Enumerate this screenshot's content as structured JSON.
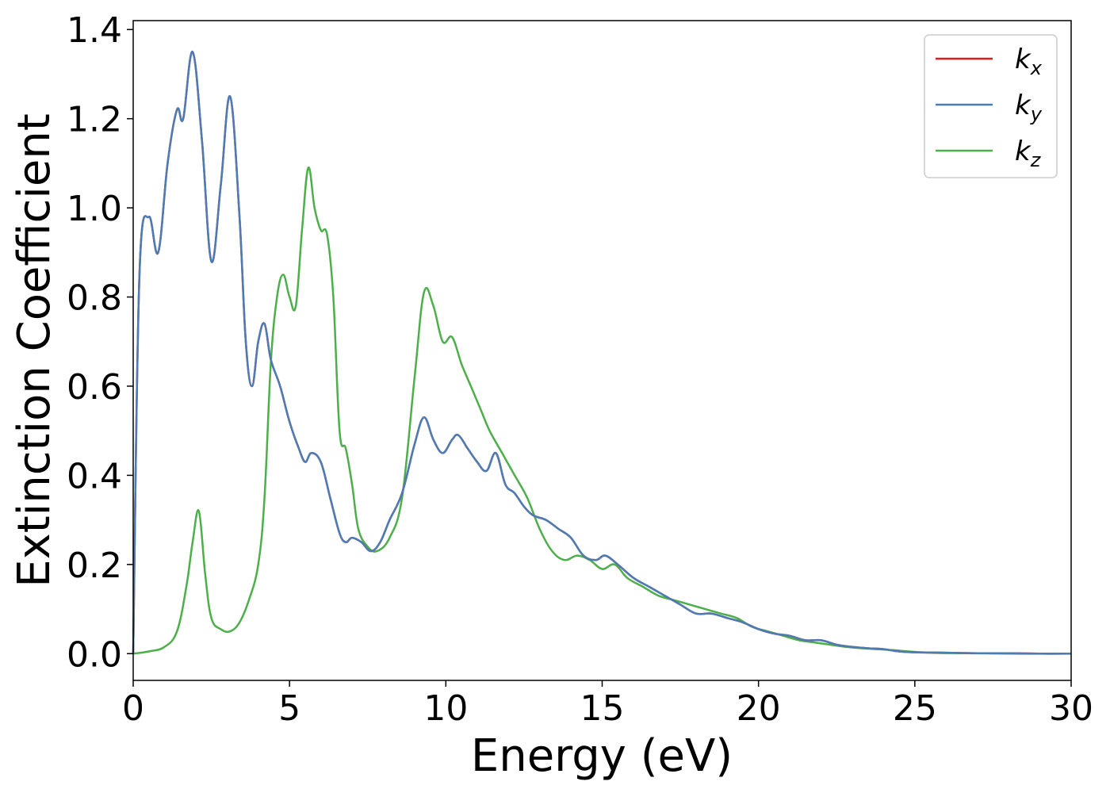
{
  "chart_data": {
    "type": "line",
    "xlabel": "Energy (eV)",
    "ylabel": "Extinction Coefficient",
    "xlim": [
      0,
      30
    ],
    "ylim": [
      -0.06,
      1.42
    ],
    "xticks": [
      0,
      5,
      10,
      15,
      20,
      25,
      30
    ],
    "xtick_labels": [
      "0",
      "5",
      "10",
      "15",
      "20",
      "25",
      "30"
    ],
    "yticks": [
      0.0,
      0.2,
      0.4,
      0.6,
      0.8,
      1.0,
      1.2,
      1.4
    ],
    "ytick_labels": [
      "0.0",
      "0.2",
      "0.4",
      "0.6",
      "0.8",
      "1.0",
      "1.2",
      "1.4"
    ],
    "grid": false,
    "legend_position": "top-right",
    "series": [
      {
        "name": "k",
        "subscript": "x",
        "color": "#e41a1c",
        "x": [
          0,
          0.2,
          0.5,
          0.8,
          1.1,
          1.4,
          1.6,
          1.9,
          2.2,
          2.5,
          2.8,
          3.1,
          3.4,
          3.6,
          3.8,
          4.0,
          4.2,
          4.4,
          4.7,
          5.0,
          5.3,
          5.5,
          5.7,
          6.0,
          6.3,
          6.6,
          6.8,
          7.0,
          7.3,
          7.6,
          7.9,
          8.2,
          8.6,
          9.0,
          9.3,
          9.6,
          9.9,
          10.2,
          10.4,
          10.7,
          11.0,
          11.3,
          11.6,
          11.9,
          12.2,
          12.5,
          12.8,
          13.2,
          13.6,
          14.0,
          14.4,
          14.8,
          15.1,
          15.5,
          16.0,
          16.5,
          17.0,
          17.5,
          18.0,
          18.5,
          19.0,
          19.5,
          20.0,
          20.5,
          21.0,
          21.5,
          22.0,
          22.5,
          23.0,
          23.5,
          24.0,
          24.5,
          25.0,
          26,
          27,
          28,
          29,
          30
        ],
        "y": [
          0.0,
          0.85,
          0.98,
          0.9,
          1.1,
          1.22,
          1.2,
          1.35,
          1.15,
          0.88,
          1.05,
          1.25,
          0.98,
          0.7,
          0.6,
          0.7,
          0.74,
          0.66,
          0.6,
          0.52,
          0.46,
          0.43,
          0.45,
          0.43,
          0.35,
          0.27,
          0.25,
          0.26,
          0.25,
          0.23,
          0.25,
          0.3,
          0.36,
          0.47,
          0.53,
          0.48,
          0.45,
          0.48,
          0.49,
          0.46,
          0.43,
          0.41,
          0.45,
          0.38,
          0.36,
          0.33,
          0.31,
          0.3,
          0.28,
          0.26,
          0.22,
          0.21,
          0.22,
          0.2,
          0.17,
          0.15,
          0.13,
          0.11,
          0.09,
          0.09,
          0.08,
          0.07,
          0.055,
          0.045,
          0.04,
          0.03,
          0.03,
          0.02,
          0.015,
          0.012,
          0.01,
          0.005,
          0.003,
          0.002,
          0.001,
          0.001,
          0.0,
          0.0
        ]
      },
      {
        "name": "k",
        "subscript": "y",
        "color": "#4a7db5",
        "x": [
          0,
          0.2,
          0.5,
          0.8,
          1.1,
          1.4,
          1.6,
          1.9,
          2.2,
          2.5,
          2.8,
          3.1,
          3.4,
          3.6,
          3.8,
          4.0,
          4.2,
          4.4,
          4.7,
          5.0,
          5.3,
          5.5,
          5.7,
          6.0,
          6.3,
          6.6,
          6.8,
          7.0,
          7.3,
          7.6,
          7.9,
          8.2,
          8.6,
          9.0,
          9.3,
          9.6,
          9.9,
          10.2,
          10.4,
          10.7,
          11.0,
          11.3,
          11.6,
          11.9,
          12.2,
          12.5,
          12.8,
          13.2,
          13.6,
          14.0,
          14.4,
          14.8,
          15.1,
          15.5,
          16.0,
          16.5,
          17.0,
          17.5,
          18.0,
          18.5,
          19.0,
          19.5,
          20.0,
          20.5,
          21.0,
          21.5,
          22.0,
          22.5,
          23.0,
          23.5,
          24.0,
          24.5,
          25.0,
          26,
          27,
          28,
          29,
          30
        ],
        "y": [
          0.0,
          0.85,
          0.98,
          0.9,
          1.1,
          1.22,
          1.2,
          1.35,
          1.15,
          0.88,
          1.05,
          1.25,
          0.98,
          0.7,
          0.6,
          0.7,
          0.74,
          0.66,
          0.6,
          0.52,
          0.46,
          0.43,
          0.45,
          0.43,
          0.35,
          0.27,
          0.25,
          0.26,
          0.25,
          0.23,
          0.25,
          0.3,
          0.36,
          0.47,
          0.53,
          0.48,
          0.45,
          0.48,
          0.49,
          0.46,
          0.43,
          0.41,
          0.45,
          0.38,
          0.36,
          0.33,
          0.31,
          0.3,
          0.28,
          0.26,
          0.22,
          0.21,
          0.22,
          0.2,
          0.17,
          0.15,
          0.13,
          0.11,
          0.09,
          0.09,
          0.08,
          0.07,
          0.055,
          0.045,
          0.04,
          0.03,
          0.03,
          0.02,
          0.015,
          0.012,
          0.01,
          0.005,
          0.003,
          0.002,
          0.001,
          0.001,
          0.0,
          0.0
        ]
      },
      {
        "name": "k",
        "subscript": "z",
        "color": "#4daf4a",
        "x": [
          0,
          0.5,
          1.0,
          1.4,
          1.7,
          1.9,
          2.1,
          2.3,
          2.5,
          2.8,
          3.1,
          3.4,
          3.7,
          4.0,
          4.2,
          4.4,
          4.6,
          4.8,
          5.0,
          5.2,
          5.4,
          5.6,
          5.8,
          6.0,
          6.2,
          6.4,
          6.6,
          6.8,
          7.0,
          7.2,
          7.5,
          7.8,
          8.2,
          8.6,
          9.0,
          9.3,
          9.6,
          9.9,
          10.2,
          10.5,
          10.8,
          11.1,
          11.4,
          11.8,
          12.2,
          12.6,
          13.0,
          13.4,
          13.8,
          14.2,
          14.6,
          15.0,
          15.4,
          15.8,
          16.3,
          16.8,
          17.3,
          17.8,
          18.3,
          18.8,
          19.3,
          19.8,
          20.3,
          20.8,
          21.3,
          21.8,
          22.3,
          22.8,
          23.3,
          23.8,
          24.3,
          24.8,
          25.5,
          26.5,
          28,
          30
        ],
        "y": [
          0.0,
          0.005,
          0.015,
          0.05,
          0.15,
          0.25,
          0.32,
          0.18,
          0.08,
          0.055,
          0.05,
          0.07,
          0.12,
          0.2,
          0.35,
          0.65,
          0.8,
          0.85,
          0.8,
          0.78,
          0.95,
          1.09,
          1.0,
          0.95,
          0.94,
          0.8,
          0.5,
          0.46,
          0.38,
          0.28,
          0.24,
          0.23,
          0.26,
          0.35,
          0.62,
          0.81,
          0.78,
          0.7,
          0.71,
          0.65,
          0.6,
          0.55,
          0.5,
          0.45,
          0.4,
          0.35,
          0.28,
          0.23,
          0.21,
          0.22,
          0.21,
          0.19,
          0.2,
          0.17,
          0.15,
          0.13,
          0.12,
          0.11,
          0.1,
          0.09,
          0.08,
          0.06,
          0.05,
          0.04,
          0.03,
          0.025,
          0.02,
          0.015,
          0.012,
          0.01,
          0.008,
          0.005,
          0.002,
          0.001,
          0.0,
          0.0
        ]
      }
    ]
  }
}
